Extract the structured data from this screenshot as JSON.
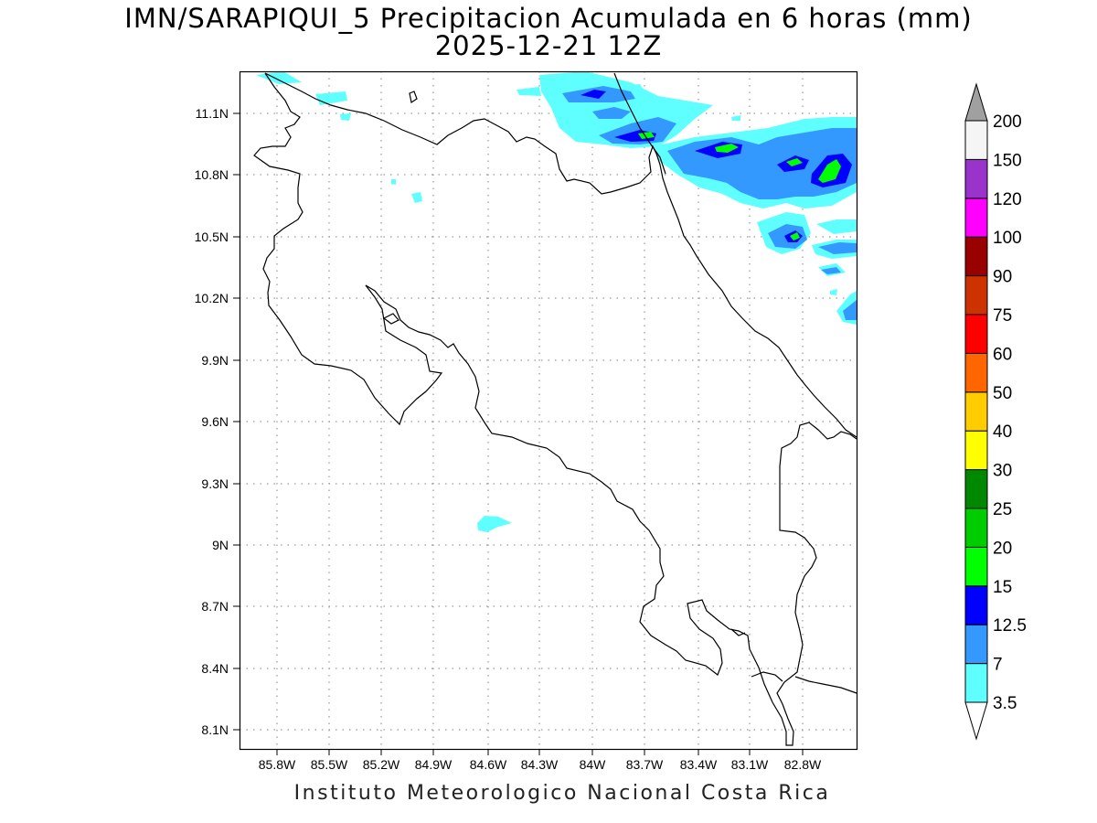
{
  "header": {
    "title": "IMN/SARAPIQUI_5 Precipitacion Acumulada en 6 horas (mm)",
    "subtitle": "2025-12-21 12Z"
  },
  "footer": {
    "credit": "Instituto Meteorologico Nacional Costa Rica"
  },
  "map": {
    "lat_labels": [
      "11.1N",
      "10.8N",
      "10.5N",
      "10.2N",
      "9.9N",
      "9.6N",
      "9.3N",
      "9N",
      "8.7N",
      "8.4N",
      "8.1N"
    ],
    "lon_labels": [
      "85.8W",
      "85.5W",
      "85.2W",
      "84.9W",
      "84.6W",
      "84.3W",
      "84W",
      "83.7W",
      "83.4W",
      "83.1W",
      "82.8W"
    ],
    "gridlines": "dotted"
  },
  "colorbar": {
    "labels": [
      "3.5",
      "7",
      "12.5",
      "15",
      "20",
      "25",
      "30",
      "40",
      "50",
      "60",
      "75",
      "90",
      "100",
      "120",
      "150",
      "200"
    ],
    "colors": [
      "#ffffff",
      "#5fffff",
      "#3399ff",
      "#0000ff",
      "#00ff00",
      "#00cc00",
      "#008800",
      "#ffff00",
      "#ffcc00",
      "#ff6600",
      "#ff0000",
      "#cc3300",
      "#990000",
      "#ff00ff",
      "#9933cc",
      "#f5f5f5",
      "#a0a0a0"
    ]
  }
}
